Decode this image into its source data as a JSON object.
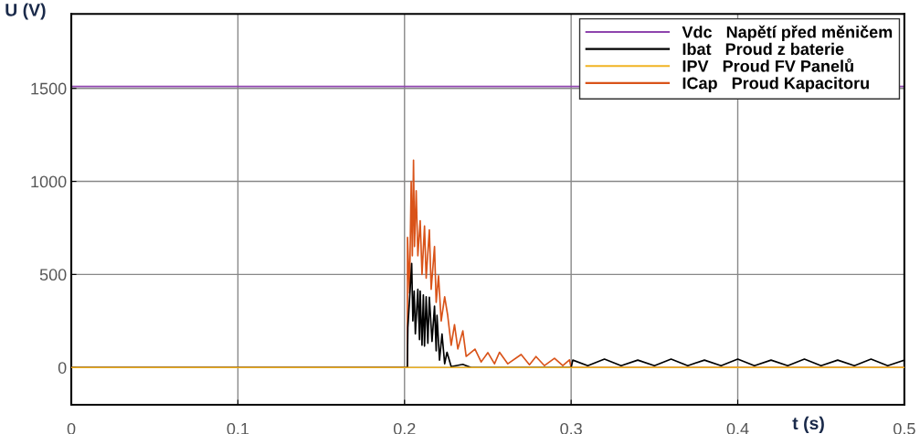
{
  "chart_data": {
    "type": "line",
    "xlabel": "t (s)",
    "ylabel": "U (V)",
    "xlim": [
      0,
      0.5
    ],
    "xticks": [
      0,
      0.1,
      0.2,
      0.3,
      0.4,
      0.5
    ],
    "ylim": [
      -200,
      1900
    ],
    "yticks": [
      0,
      500,
      1000,
      1500
    ],
    "grid": true,
    "legend": "top right",
    "marker": "none",
    "line_style": "solid",
    "series": [
      {
        "name": "Vdc   Napětí před měničem",
        "color": "#8e44ad",
        "x": [
          0,
          0.5
        ],
        "values": [
          1510,
          1510
        ]
      },
      {
        "name": "Ibat   Proud z baterie",
        "color": "#000000",
        "x": [
          0,
          0.2017,
          0.202,
          0.2043,
          0.205,
          0.2058,
          0.2065,
          0.208,
          0.209,
          0.2094,
          0.2105,
          0.2113,
          0.212,
          0.213,
          0.214,
          0.2149,
          0.2165,
          0.218,
          0.219,
          0.2195,
          0.221,
          0.2225,
          0.2241,
          0.2255,
          0.228,
          0.235,
          0.24,
          0.3,
          0.301,
          0.31,
          0.32,
          0.33,
          0.34,
          0.35,
          0.36,
          0.37,
          0.38,
          0.39,
          0.4,
          0.41,
          0.42,
          0.43,
          0.44,
          0.45,
          0.46,
          0.47,
          0.48,
          0.49,
          0.5
        ],
        "values": [
          0,
          0,
          214,
          559,
          250,
          411,
          181,
          420,
          150,
          411,
          120,
          390,
          115,
          380,
          130,
          378,
          140,
          330,
          90,
          280,
          40,
          180,
          20,
          82,
          5,
          17,
          0,
          0,
          40,
          10,
          45,
          10,
          40,
          10,
          45,
          10,
          40,
          10,
          45,
          10,
          40,
          10,
          45,
          10,
          40,
          10,
          45,
          10,
          40
        ]
      },
      {
        "name": "IPV   Proud FV Panelů",
        "color": "#f0b323",
        "x": [
          0,
          0.5
        ],
        "values": [
          0,
          0
        ]
      },
      {
        "name": "ICap   Proud Kapacitoru",
        "color": "#d95319",
        "x": [
          0,
          0.2017,
          0.2018,
          0.203,
          0.204,
          0.2047,
          0.2054,
          0.206,
          0.207,
          0.208,
          0.2094,
          0.2105,
          0.212,
          0.213,
          0.2149,
          0.216,
          0.218,
          0.219,
          0.2204,
          0.222,
          0.2241,
          0.2259,
          0.228,
          0.23,
          0.232,
          0.235,
          0.237,
          0.2423,
          0.246,
          0.25,
          0.254,
          0.257,
          0.262,
          0.27,
          0.275,
          0.2789,
          0.284,
          0.29,
          0.295,
          0.299,
          0.3,
          0.5
        ],
        "values": [
          0,
          0,
          699,
          400,
          1000,
          600,
          1114,
          650,
          950,
          600,
          789,
          500,
          760,
          480,
          740,
          420,
          650,
          350,
          493,
          250,
          380,
          281,
          120,
          230,
          100,
          197,
          60,
          99,
          30,
          80,
          20,
          82,
          20,
          70,
          15,
          59,
          10,
          50,
          10,
          41,
          0,
          0
        ]
      }
    ]
  }
}
